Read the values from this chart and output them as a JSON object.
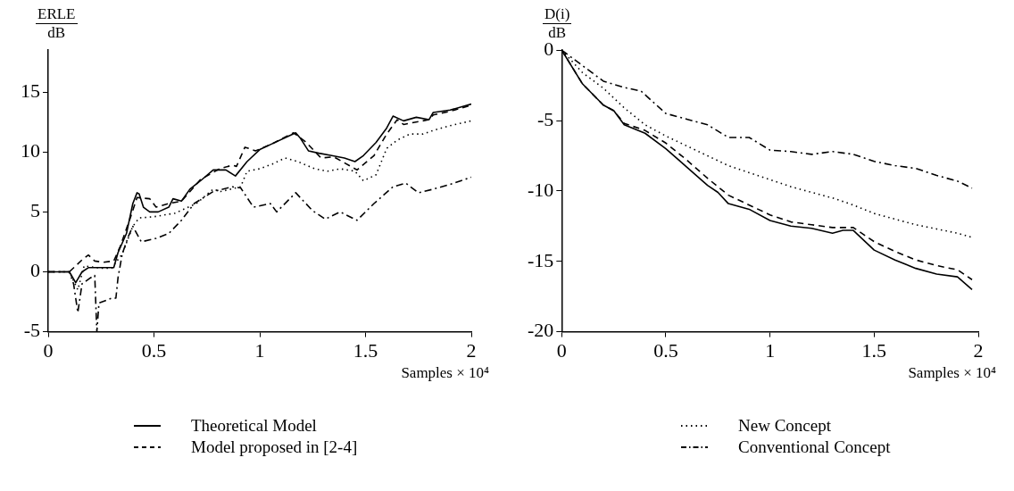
{
  "chart_data": [
    {
      "type": "line",
      "ylabel": "ERLE\ndB",
      "xlabel": "Samples × 10⁴",
      "xlim": [
        0,
        2
      ],
      "ylim": [
        -5,
        18.5
      ],
      "xticks": [
        0,
        0.5,
        1,
        1.5,
        2
      ],
      "yticks": [
        -5,
        0,
        5,
        10,
        15
      ],
      "legend": "bottom",
      "marker": "none",
      "series": [
        {
          "name": "Theoretical Model",
          "color": "#000000",
          "line_style": "solid",
          "x": [
            0,
            0.1,
            0.13,
            0.16,
            0.19,
            0.22,
            0.25,
            0.31,
            0.33,
            0.37,
            0.4,
            0.42,
            0.43,
            0.45,
            0.48,
            0.52,
            0.57,
            0.59,
            0.63,
            0.67,
            0.72,
            0.78,
            0.84,
            0.885,
            0.94,
            1.0,
            1.06,
            1.12,
            1.17,
            1.19,
            1.23,
            1.28,
            1.34,
            1.4,
            1.45,
            1.49,
            1.55,
            1.6,
            1.63,
            1.68,
            1.74,
            1.8,
            1.82,
            1.9,
            2.0
          ],
          "values": [
            0,
            0,
            -0.9,
            0,
            0.35,
            0.35,
            0.35,
            0.35,
            1.6,
            3.2,
            5.7,
            6.6,
            6.5,
            5.4,
            5.0,
            5.0,
            5.4,
            6.1,
            5.9,
            6.9,
            7.6,
            8.5,
            8.5,
            8.0,
            9.2,
            10.2,
            10.7,
            11.2,
            11.6,
            11.2,
            10.1,
            9.9,
            9.7,
            9.5,
            9.2,
            9.7,
            10.8,
            12.0,
            13.0,
            12.6,
            12.9,
            12.7,
            13.3,
            13.5,
            14.0
          ]
        },
        {
          "name": "Model proposed in [2-4]",
          "color": "#000000",
          "line_style": "dashed",
          "x": [
            0,
            0.1,
            0.16,
            0.19,
            0.22,
            0.26,
            0.31,
            0.34,
            0.39,
            0.42,
            0.48,
            0.51,
            0.57,
            0.63,
            0.72,
            0.81,
            0.87,
            0.89,
            0.93,
            0.98,
            1.06,
            1.16,
            1.22,
            1.29,
            1.35,
            1.46,
            1.54,
            1.6,
            1.65,
            1.68,
            1.8,
            1.82,
            1.9,
            2.0
          ],
          "values": [
            0,
            0,
            1.0,
            1.4,
            0.9,
            0.8,
            0.9,
            2.1,
            4.6,
            6.2,
            6.1,
            5.4,
            5.7,
            5.9,
            7.7,
            8.6,
            8.9,
            8.8,
            10.4,
            10.1,
            10.7,
            11.6,
            10.8,
            9.5,
            9.6,
            8.5,
            9.7,
            11.5,
            12.7,
            12.3,
            12.7,
            13.1,
            13.4,
            13.9
          ]
        },
        {
          "color": "#000000",
          "line_style": "dotted",
          "x": [
            0,
            0.1,
            0.14,
            0.17,
            0.25,
            0.3,
            0.35,
            0.4,
            0.43,
            0.5,
            0.6,
            0.7,
            0.78,
            0.815,
            0.91,
            0.94,
            1.0,
            1.06,
            1.12,
            1.18,
            1.26,
            1.32,
            1.38,
            1.45,
            1.49,
            1.55,
            1.6,
            1.65,
            1.71,
            1.77,
            1.82,
            1.9,
            2.0
          ],
          "values": [
            0,
            0,
            -1.5,
            0.5,
            0.3,
            0.3,
            1.5,
            3.8,
            4.5,
            4.6,
            4.9,
            5.7,
            6.9,
            6.7,
            7.1,
            8.4,
            8.6,
            9.0,
            9.5,
            9.2,
            8.6,
            8.4,
            8.6,
            8.4,
            7.6,
            8.1,
            10.3,
            11.0,
            11.5,
            11.5,
            11.8,
            12.2,
            12.6
          ]
        },
        {
          "color": "#000000",
          "line_style": "dashdot",
          "x": [
            0,
            0.1,
            0.12,
            0.14,
            0.16,
            0.2,
            0.22,
            0.23,
            0.24,
            0.3,
            0.32,
            0.33,
            0.35,
            0.38,
            0.4,
            0.44,
            0.51,
            0.57,
            0.63,
            0.69,
            0.78,
            0.87,
            0.91,
            0.97,
            1.05,
            1.08,
            1.17,
            1.25,
            1.31,
            1.38,
            1.46,
            1.54,
            1.63,
            1.69,
            1.75,
            1.82,
            1.9,
            2.0
          ],
          "values": [
            0,
            0,
            -1,
            -3.4,
            -1,
            -0.5,
            -0.3,
            -5,
            -2.6,
            -2.2,
            -2.2,
            -0.5,
            1.5,
            3,
            3.8,
            2.5,
            2.8,
            3.2,
            4.3,
            5.7,
            6.7,
            7.1,
            7.0,
            5.4,
            5.7,
            5.0,
            6.6,
            5.1,
            4.4,
            5.0,
            4.3,
            5.7,
            7.1,
            7.4,
            6.6,
            6.9,
            7.3,
            7.9
          ]
        }
      ]
    },
    {
      "type": "line",
      "ylabel": "D(i)\ndB",
      "xlabel": "Samples × 10⁴",
      "xlim": [
        0,
        2
      ],
      "ylim": [
        -20,
        0
      ],
      "xticks": [
        0,
        0.5,
        1,
        1.5,
        2
      ],
      "yticks": [
        -20,
        -15,
        -10,
        -5,
        0
      ],
      "legend": "bottom",
      "marker": "none",
      "series": [
        {
          "color": "#000000",
          "line_style": "solid",
          "x": [
            0,
            0.1,
            0.2,
            0.25,
            0.3,
            0.4,
            0.5,
            0.6,
            0.7,
            0.75,
            0.8,
            0.9,
            1.0,
            1.1,
            1.2,
            1.3,
            1.35,
            1.4,
            1.5,
            1.6,
            1.7,
            1.8,
            1.9,
            1.97
          ],
          "values": [
            0,
            -2.4,
            -3.9,
            -4.3,
            -5.3,
            -5.9,
            -7.0,
            -8.3,
            -9.6,
            -10.1,
            -10.9,
            -11.3,
            -12.1,
            -12.5,
            -12.65,
            -13.0,
            -12.8,
            -12.8,
            -14.2,
            -14.9,
            -15.5,
            -15.9,
            -16.1,
            -17.0
          ]
        },
        {
          "color": "#000000",
          "line_style": "dashed",
          "x": [
            0,
            0.1,
            0.2,
            0.25,
            0.3,
            0.4,
            0.5,
            0.6,
            0.7,
            0.8,
            0.9,
            1.0,
            1.1,
            1.2,
            1.3,
            1.4,
            1.5,
            1.6,
            1.7,
            1.8,
            1.9,
            1.97
          ],
          "values": [
            0,
            -2.4,
            -3.9,
            -4.3,
            -5.2,
            -5.7,
            -6.6,
            -7.8,
            -9.1,
            -10.3,
            -11.0,
            -11.7,
            -12.2,
            -12.4,
            -12.6,
            -12.6,
            -13.6,
            -14.3,
            -14.9,
            -15.3,
            -15.6,
            -16.3
          ]
        },
        {
          "name": "New Concept",
          "color": "#000000",
          "line_style": "dotted",
          "x": [
            0,
            0.1,
            0.2,
            0.3,
            0.4,
            0.5,
            0.6,
            0.7,
            0.8,
            0.9,
            1.0,
            1.1,
            1.2,
            1.3,
            1.4,
            1.5,
            1.6,
            1.7,
            1.8,
            1.9,
            1.97
          ],
          "values": [
            0,
            -1.6,
            -2.7,
            -4.1,
            -5.3,
            -6.1,
            -6.8,
            -7.5,
            -8.2,
            -8.7,
            -9.2,
            -9.7,
            -10.1,
            -10.5,
            -11.0,
            -11.6,
            -12.0,
            -12.4,
            -12.7,
            -13.0,
            -13.3
          ]
        },
        {
          "name": "Conventional Concept",
          "color": "#000000",
          "line_style": "dashdot",
          "x": [
            0,
            0.1,
            0.2,
            0.3,
            0.38,
            0.5,
            0.6,
            0.7,
            0.8,
            0.9,
            1.0,
            1.1,
            1.2,
            1.3,
            1.4,
            1.5,
            1.6,
            1.7,
            1.8,
            1.9,
            1.97
          ],
          "values": [
            0,
            -1.1,
            -2.2,
            -2.65,
            -2.9,
            -4.5,
            -4.9,
            -5.3,
            -6.2,
            -6.2,
            -7.1,
            -7.2,
            -7.4,
            -7.2,
            -7.4,
            -7.9,
            -8.2,
            -8.4,
            -8.9,
            -9.3,
            -9.8
          ]
        }
      ]
    }
  ]
}
